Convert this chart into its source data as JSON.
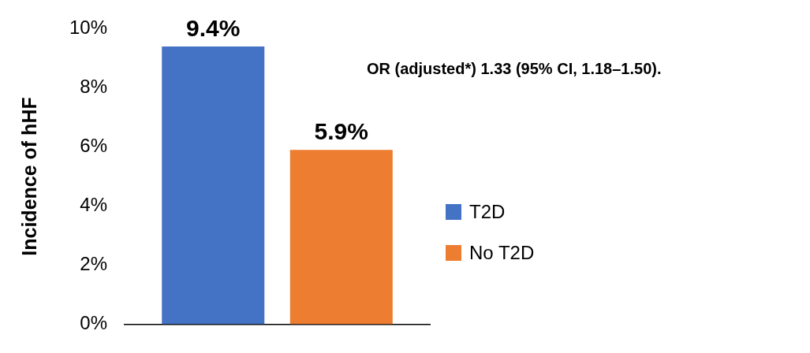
{
  "chart_data": {
    "type": "bar",
    "ylabel": "Incidence of hHF",
    "categories": [
      null
    ],
    "series": [
      {
        "name": "T2D",
        "color": "#4472c4",
        "values": [
          9.4
        ],
        "value_labels": [
          "9.4%"
        ]
      },
      {
        "name": "No T2D",
        "color": "#ed7d31",
        "values": [
          5.9
        ],
        "value_labels": [
          "5.9%"
        ]
      }
    ],
    "ylim": [
      0,
      10
    ],
    "yticks": [
      {
        "value": 0,
        "label": "0%"
      },
      {
        "value": 2,
        "label": "2%"
      },
      {
        "value": 4,
        "label": "4%"
      },
      {
        "value": 6,
        "label": "6%"
      },
      {
        "value": 8,
        "label": "8%"
      },
      {
        "value": 10,
        "label": "10%"
      }
    ],
    "grid": false,
    "legend": "right",
    "annotations": [
      "OR (adjusted*) 1.33 (95% CI, 1.18–1.50)."
    ]
  }
}
